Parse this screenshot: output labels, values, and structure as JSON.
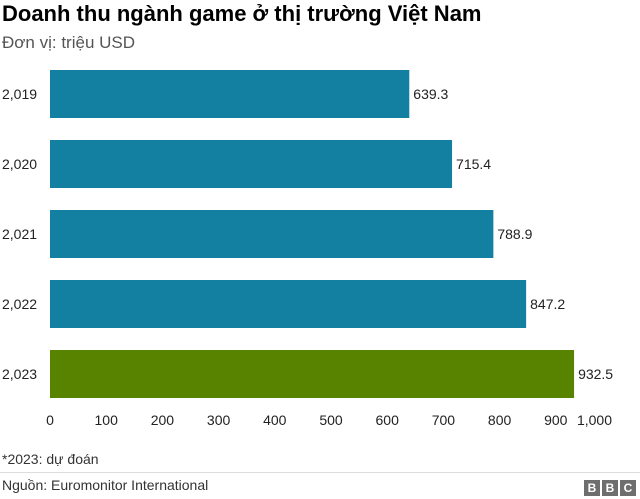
{
  "chart_data": {
    "type": "bar",
    "orientation": "horizontal",
    "title": "Doanh thu ngành game ở thị trường Việt Nam",
    "subtitle": "Đơn vị: triệu USD",
    "categories": [
      "2,019",
      "2,020",
      "2,021",
      "2,022",
      "2,023"
    ],
    "values": [
      639.3,
      715.4,
      788.9,
      847.2,
      932.5
    ],
    "value_labels": [
      "639.3",
      "715.4",
      "788.9",
      "847.2",
      "932.5"
    ],
    "bar_colors": [
      "#1380a1",
      "#1380a1",
      "#1380a1",
      "#1380a1",
      "#588300"
    ],
    "xlim": [
      0,
      1000
    ],
    "xticks": [
      0,
      100,
      200,
      300,
      400,
      500,
      600,
      700,
      800,
      900,
      1000
    ],
    "xtick_labels": [
      "0",
      "100",
      "200",
      "300",
      "400",
      "500",
      "600",
      "700",
      "800",
      "900",
      "1,000"
    ],
    "xlabel": "",
    "ylabel": "",
    "grid": false,
    "legend": "none"
  },
  "footnote": "*2023: dự đoán",
  "source": "Nguồn: Euromonitor International",
  "logo_letters": [
    "B",
    "B",
    "C"
  ]
}
